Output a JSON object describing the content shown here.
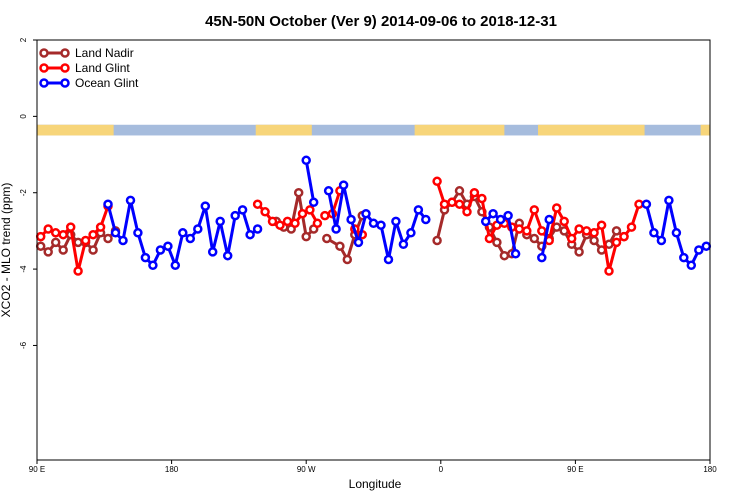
{
  "chart_data": {
    "type": "line",
    "title": "45N-50N October (Ver 9)   2014-09-06 to 2018-12-31",
    "xlabel": "Longitude",
    "ylabel": "XCO2 - MLO trend (ppm)",
    "xlim": [
      0,
      360
    ],
    "ylim": [
      -9,
      2
    ],
    "x_ticks": [
      {
        "value": 0,
        "label": "90 E"
      },
      {
        "value": 72,
        "label": "180"
      },
      {
        "value": 144,
        "label": "90 W"
      },
      {
        "value": 216,
        "label": "0"
      },
      {
        "value": 288,
        "label": "90 E"
      },
      {
        "value": 360,
        "label": "180"
      }
    ],
    "y_ticks": [
      {
        "value": 2,
        "label": "2"
      },
      {
        "value": 0,
        "label": "0"
      },
      {
        "value": -2,
        "label": "-2"
      },
      {
        "value": -4,
        "label": "-4"
      },
      {
        "value": -6,
        "label": "-6"
      }
    ],
    "legend_position": "top-left",
    "land_strip": {
      "y_top": -0.22,
      "y_bottom": -0.5,
      "land_color": "#f7d57a",
      "ocean_color": "#a6bcdd",
      "land_ranges": [
        [
          0,
          41
        ],
        [
          117,
          147
        ],
        [
          202,
          250
        ],
        [
          268,
          325
        ],
        [
          355,
          360
        ]
      ]
    },
    "series": [
      {
        "name": "Land Nadir",
        "color": "#a52a2a",
        "segments": [
          [
            [
              2,
              -3.4
            ],
            [
              6,
              -3.55
            ],
            [
              10,
              -3.3
            ],
            [
              14,
              -3.5
            ],
            [
              18,
              -3.1
            ],
            [
              22,
              -3.3
            ],
            [
              26,
              -3.3
            ],
            [
              30,
              -3.5
            ],
            [
              34,
              -3.05
            ],
            [
              38,
              -3.2
            ],
            [
              42,
              -3.0
            ]
          ],
          [
            [
              128,
              -2.75
            ],
            [
              132,
              -2.9
            ],
            [
              136,
              -2.95
            ],
            [
              140,
              -2.0
            ],
            [
              144,
              -3.15
            ],
            [
              148,
              -2.95
            ]
          ],
          [
            [
              155,
              -3.2
            ],
            [
              162,
              -3.4
            ],
            [
              166,
              -3.75
            ],
            [
              170,
              -3.1
            ],
            [
              174,
              -2.6
            ]
          ],
          [
            [
              214,
              -3.25
            ],
            [
              218,
              -2.45
            ],
            [
              222,
              -2.25
            ],
            [
              226,
              -1.95
            ],
            [
              230,
              -2.3
            ],
            [
              234,
              -2.1
            ],
            [
              238,
              -2.5
            ],
            [
              242,
              -2.9
            ],
            [
              246,
              -3.3
            ],
            [
              250,
              -3.65
            ],
            [
              254,
              -3.6
            ],
            [
              258,
              -2.8
            ],
            [
              262,
              -3.1
            ],
            [
              266,
              -3.2
            ],
            [
              270,
              -3.4
            ],
            [
              274,
              -3.2
            ],
            [
              278,
              -2.9
            ],
            [
              282,
              -3.0
            ],
            [
              286,
              -3.35
            ],
            [
              290,
              -3.55
            ],
            [
              294,
              -3.1
            ],
            [
              298,
              -3.25
            ],
            [
              302,
              -3.5
            ],
            [
              306,
              -3.35
            ],
            [
              310,
              -3.0
            ],
            [
              314,
              -3.15
            ]
          ]
        ]
      },
      {
        "name": "Land Glint",
        "color": "#ff0000",
        "segments": [
          [
            [
              2,
              -3.15
            ],
            [
              6,
              -2.95
            ],
            [
              10,
              -3.05
            ],
            [
              14,
              -3.1
            ],
            [
              18,
              -2.9
            ],
            [
              22,
              -4.05
            ],
            [
              26,
              -3.25
            ],
            [
              30,
              -3.1
            ],
            [
              34,
              -2.9
            ],
            [
              38,
              -2.35
            ]
          ],
          [
            [
              118,
              -2.3
            ],
            [
              122,
              -2.5
            ],
            [
              126,
              -2.75
            ],
            [
              130,
              -2.85
            ],
            [
              134,
              -2.75
            ],
            [
              138,
              -2.8
            ],
            [
              142,
              -2.55
            ],
            [
              146,
              -2.45
            ],
            [
              150,
              -2.8
            ]
          ],
          [
            [
              154,
              -2.6
            ],
            [
              158,
              -2.55
            ],
            [
              162,
              -1.95
            ]
          ],
          [
            [
              170,
              -2.95
            ],
            [
              174,
              -3.1
            ]
          ],
          [
            [
              214,
              -1.7
            ],
            [
              218,
              -2.3
            ],
            [
              222,
              -2.25
            ],
            [
              226,
              -2.3
            ],
            [
              230,
              -2.5
            ],
            [
              234,
              -2.0
            ],
            [
              238,
              -2.15
            ],
            [
              242,
              -3.2
            ],
            [
              246,
              -2.85
            ],
            [
              250,
              -2.8
            ],
            [
              254,
              -2.9
            ],
            [
              258,
              -2.95
            ],
            [
              262,
              -3.0
            ],
            [
              266,
              -2.45
            ],
            [
              270,
              -3.0
            ],
            [
              274,
              -3.25
            ],
            [
              278,
              -2.4
            ],
            [
              282,
              -2.75
            ],
            [
              286,
              -3.2
            ],
            [
              290,
              -2.95
            ],
            [
              294,
              -3.0
            ],
            [
              298,
              -3.05
            ],
            [
              302,
              -2.85
            ],
            [
              306,
              -4.05
            ],
            [
              310,
              -3.3
            ],
            [
              314,
              -3.15
            ],
            [
              318,
              -2.9
            ],
            [
              322,
              -2.3
            ]
          ]
        ]
      },
      {
        "name": "Ocean Glint",
        "color": "#0000ff",
        "segments": [
          [
            [
              38,
              -2.3
            ],
            [
              42,
              -3.05
            ],
            [
              46,
              -3.25
            ],
            [
              50,
              -2.2
            ],
            [
              54,
              -3.05
            ],
            [
              58,
              -3.7
            ],
            [
              62,
              -3.9
            ],
            [
              66,
              -3.5
            ],
            [
              70,
              -3.4
            ],
            [
              74,
              -3.9
            ],
            [
              78,
              -3.05
            ],
            [
              82,
              -3.2
            ],
            [
              86,
              -2.95
            ],
            [
              90,
              -2.35
            ],
            [
              94,
              -3.55
            ],
            [
              98,
              -2.75
            ],
            [
              102,
              -3.65
            ],
            [
              106,
              -2.6
            ],
            [
              110,
              -2.45
            ],
            [
              114,
              -3.1
            ],
            [
              118,
              -2.95
            ]
          ],
          [
            [
              144,
              -1.15
            ],
            [
              148,
              -2.25
            ]
          ],
          [
            [
              156,
              -1.95
            ],
            [
              160,
              -2.95
            ],
            [
              164,
              -1.8
            ],
            [
              168,
              -2.7
            ],
            [
              172,
              -3.3
            ],
            [
              176,
              -2.55
            ],
            [
              180,
              -2.8
            ],
            [
              184,
              -2.85
            ],
            [
              188,
              -3.75
            ],
            [
              192,
              -2.75
            ],
            [
              196,
              -3.35
            ],
            [
              200,
              -3.05
            ],
            [
              204,
              -2.45
            ],
            [
              208,
              -2.7
            ]
          ],
          [
            [
              240,
              -2.75
            ],
            [
              244,
              -2.55
            ],
            [
              248,
              -2.7
            ]
          ],
          [
            [
              252,
              -2.6
            ],
            [
              256,
              -3.6
            ]
          ],
          [
            [
              270,
              -3.7
            ],
            [
              274,
              -2.7
            ]
          ],
          [
            [
              326,
              -2.3
            ],
            [
              330,
              -3.05
            ],
            [
              334,
              -3.25
            ],
            [
              338,
              -2.2
            ],
            [
              342,
              -3.05
            ],
            [
              346,
              -3.7
            ],
            [
              350,
              -3.9
            ],
            [
              354,
              -3.5
            ],
            [
              358,
              -3.4
            ]
          ]
        ]
      }
    ]
  }
}
